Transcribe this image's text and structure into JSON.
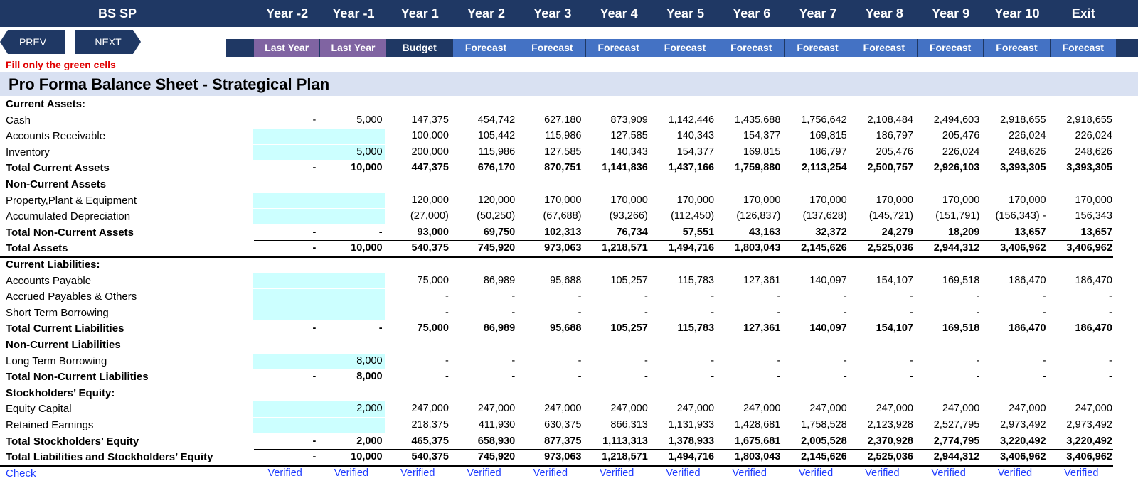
{
  "header": {
    "sheet_title": "BS SP",
    "years": [
      "Year -2",
      "Year -1",
      "Year 1",
      "Year 2",
      "Year 3",
      "Year 4",
      "Year 5",
      "Year 6",
      "Year 7",
      "Year 8",
      "Year 9",
      "Year 10",
      "Exit"
    ],
    "subheads": [
      "Last Year",
      "Last Year",
      "Budget",
      "Forecast",
      "Forecast",
      "Forecast",
      "Forecast",
      "Forecast",
      "Forecast",
      "Forecast",
      "Forecast",
      "Forecast",
      "Forecast"
    ]
  },
  "nav": {
    "prev": "PREV",
    "next": "NEXT"
  },
  "note": "Fill only the green cells",
  "title": "Pro Forma Balance Sheet - Strategical Plan",
  "colors": {
    "header_bg": "#1f3864",
    "last_year_bg": "#8064a2",
    "budget_bg": "#1f3864",
    "forecast_bg": "#4472c4",
    "title_band": "#d9e1f2",
    "input_cell": "#ccffff",
    "note_text": "#e00000",
    "check_text": "#1f3cff"
  },
  "rows": [
    {
      "label": "Current Assets:",
      "style": "section",
      "values": []
    },
    {
      "label": "Cash",
      "style": "normal",
      "green": [],
      "values": [
        "-",
        "5,000",
        "147,375",
        "454,742",
        "627,180",
        "873,909",
        "1,142,446",
        "1,435,688",
        "1,756,642",
        "2,108,484",
        "2,494,603",
        "2,918,655",
        "2,918,655"
      ]
    },
    {
      "label": "Accounts Receivable",
      "style": "normal",
      "green": [
        0,
        1
      ],
      "values": [
        "",
        "",
        "100,000",
        "105,442",
        "115,986",
        "127,585",
        "140,343",
        "154,377",
        "169,815",
        "186,797",
        "205,476",
        "226,024",
        "226,024"
      ]
    },
    {
      "label": "Inventory",
      "style": "normal",
      "green": [
        0,
        1
      ],
      "values": [
        "",
        "5,000",
        "200,000",
        "115,986",
        "127,585",
        "140,343",
        "154,377",
        "169,815",
        "186,797",
        "205,476",
        "226,024",
        "248,626",
        "248,626"
      ]
    },
    {
      "label": "Total Current Assets",
      "style": "total",
      "values": [
        "-",
        "10,000",
        "447,375",
        "676,170",
        "870,751",
        "1,141,836",
        "1,437,166",
        "1,759,880",
        "2,113,254",
        "2,500,757",
        "2,926,103",
        "3,393,305",
        "3,393,305"
      ]
    },
    {
      "label": "Non-Current Assets",
      "style": "section",
      "values": []
    },
    {
      "label": "Property,Plant & Equipment",
      "style": "normal",
      "green": [
        0,
        1
      ],
      "values": [
        "",
        "",
        "120,000",
        "120,000",
        "170,000",
        "170,000",
        "170,000",
        "170,000",
        "170,000",
        "170,000",
        "170,000",
        "170,000",
        "170,000"
      ]
    },
    {
      "label": "Accumulated Depreciation",
      "style": "normal",
      "green": [
        0,
        1
      ],
      "values": [
        "",
        "",
        "(27,000)",
        "(50,250)",
        "(67,688)",
        "(93,266)",
        "(112,450)",
        "(126,837)",
        "(137,628)",
        "(145,721)",
        "(151,791)",
        "(156,343) -",
        "156,343"
      ]
    },
    {
      "label": "Total Non-Current Assets",
      "style": "total",
      "values": [
        "-",
        "-",
        "93,000",
        "69,750",
        "102,313",
        "76,734",
        "57,551",
        "43,163",
        "32,372",
        "24,279",
        "18,209",
        "13,657",
        "13,657"
      ]
    },
    {
      "label": "Total Assets",
      "style": "grand",
      "values": [
        "-",
        "10,000",
        "540,375",
        "745,920",
        "973,063",
        "1,218,571",
        "1,494,716",
        "1,803,043",
        "2,145,626",
        "2,525,036",
        "2,944,312",
        "3,406,962",
        "3,406,962"
      ]
    },
    {
      "label": "Current Liabilities:",
      "style": "section",
      "values": []
    },
    {
      "label": "Accounts Payable",
      "style": "normal",
      "green": [
        0,
        1
      ],
      "values": [
        "",
        "",
        "75,000",
        "86,989",
        "95,688",
        "105,257",
        "115,783",
        "127,361",
        "140,097",
        "154,107",
        "169,518",
        "186,470",
        "186,470"
      ]
    },
    {
      "label": "Accrued Payables & Others",
      "style": "normal",
      "green": [
        0,
        1
      ],
      "values": [
        "",
        "",
        "-",
        "-",
        "-",
        "-",
        "-",
        "-",
        "-",
        "-",
        "-",
        "-",
        "-"
      ]
    },
    {
      "label": "Short Term Borrowing",
      "style": "normal",
      "green": [
        0,
        1
      ],
      "values": [
        "",
        "",
        "-",
        "-",
        "-",
        "-",
        "-",
        "-",
        "-",
        "-",
        "-",
        "-",
        "-"
      ]
    },
    {
      "label": "Total Current Liabilities",
      "style": "total",
      "values": [
        "-",
        "-",
        "75,000",
        "86,989",
        "95,688",
        "105,257",
        "115,783",
        "127,361",
        "140,097",
        "154,107",
        "169,518",
        "186,470",
        "186,470"
      ]
    },
    {
      "label": "Non-Current Liabilities",
      "style": "section",
      "values": []
    },
    {
      "label": "Long Term Borrowing",
      "style": "normal",
      "green": [
        0,
        1
      ],
      "values": [
        "",
        "8,000",
        "-",
        "-",
        "-",
        "-",
        "-",
        "-",
        "-",
        "-",
        "-",
        "-",
        "-"
      ]
    },
    {
      "label": "Total Non-Current Liabilities",
      "style": "total",
      "values": [
        "-",
        "8,000",
        "-",
        "-",
        "-",
        "-",
        "-",
        "-",
        "-",
        "-",
        "-",
        "-",
        "-"
      ]
    },
    {
      "label": "Stockholders’ Equity:",
      "style": "section",
      "values": []
    },
    {
      "label": "Equity Capital",
      "style": "normal",
      "green": [
        0,
        1
      ],
      "values": [
        "",
        "2,000",
        "247,000",
        "247,000",
        "247,000",
        "247,000",
        "247,000",
        "247,000",
        "247,000",
        "247,000",
        "247,000",
        "247,000",
        "247,000"
      ]
    },
    {
      "label": "Retained Earnings",
      "style": "normal",
      "green": [
        0,
        1
      ],
      "values": [
        "",
        "",
        "218,375",
        "411,930",
        "630,375",
        "866,313",
        "1,131,933",
        "1,428,681",
        "1,758,528",
        "2,123,928",
        "2,527,795",
        "2,973,492",
        "2,973,492"
      ]
    },
    {
      "label": "Total Stockholders’ Equity",
      "style": "total",
      "values": [
        "-",
        "2,000",
        "465,375",
        "658,930",
        "877,375",
        "1,113,313",
        "1,378,933",
        "1,675,681",
        "2,005,528",
        "2,370,928",
        "2,774,795",
        "3,220,492",
        "3,220,492"
      ]
    },
    {
      "label": "Total Liabilities and Stockholders’ Equity",
      "style": "grand",
      "values": [
        "-",
        "10,000",
        "540,375",
        "745,920",
        "973,063",
        "1,218,571",
        "1,494,716",
        "1,803,043",
        "2,145,626",
        "2,525,036",
        "2,944,312",
        "3,406,962",
        "3,406,962"
      ]
    },
    {
      "label": "Check",
      "style": "check",
      "values": [
        "Verified",
        "Verified",
        "Verified",
        "Verified",
        "Verified",
        "Verified",
        "Verified",
        "Verified",
        "Verified",
        "Verified",
        "Verified",
        "Verified",
        "Verified"
      ]
    }
  ]
}
